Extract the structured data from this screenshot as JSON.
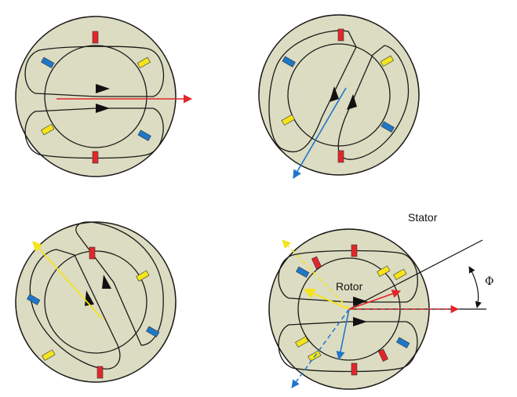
{
  "labels": {
    "stator": "Stator",
    "rotor": "Rotor",
    "phi": "Φ"
  },
  "colors": {
    "stator_fill": "#dcdcc2",
    "outline": "#1a1a1a",
    "phase_red": "#e3262b",
    "phase_blue": "#1f77c9",
    "phase_yellow": "#f4e41c"
  },
  "panels": [
    {
      "name": "field-aligned-red"
    },
    {
      "name": "field-aligned-blue"
    },
    {
      "name": "field-aligned-yellow"
    },
    {
      "name": "field-superposition"
    }
  ]
}
